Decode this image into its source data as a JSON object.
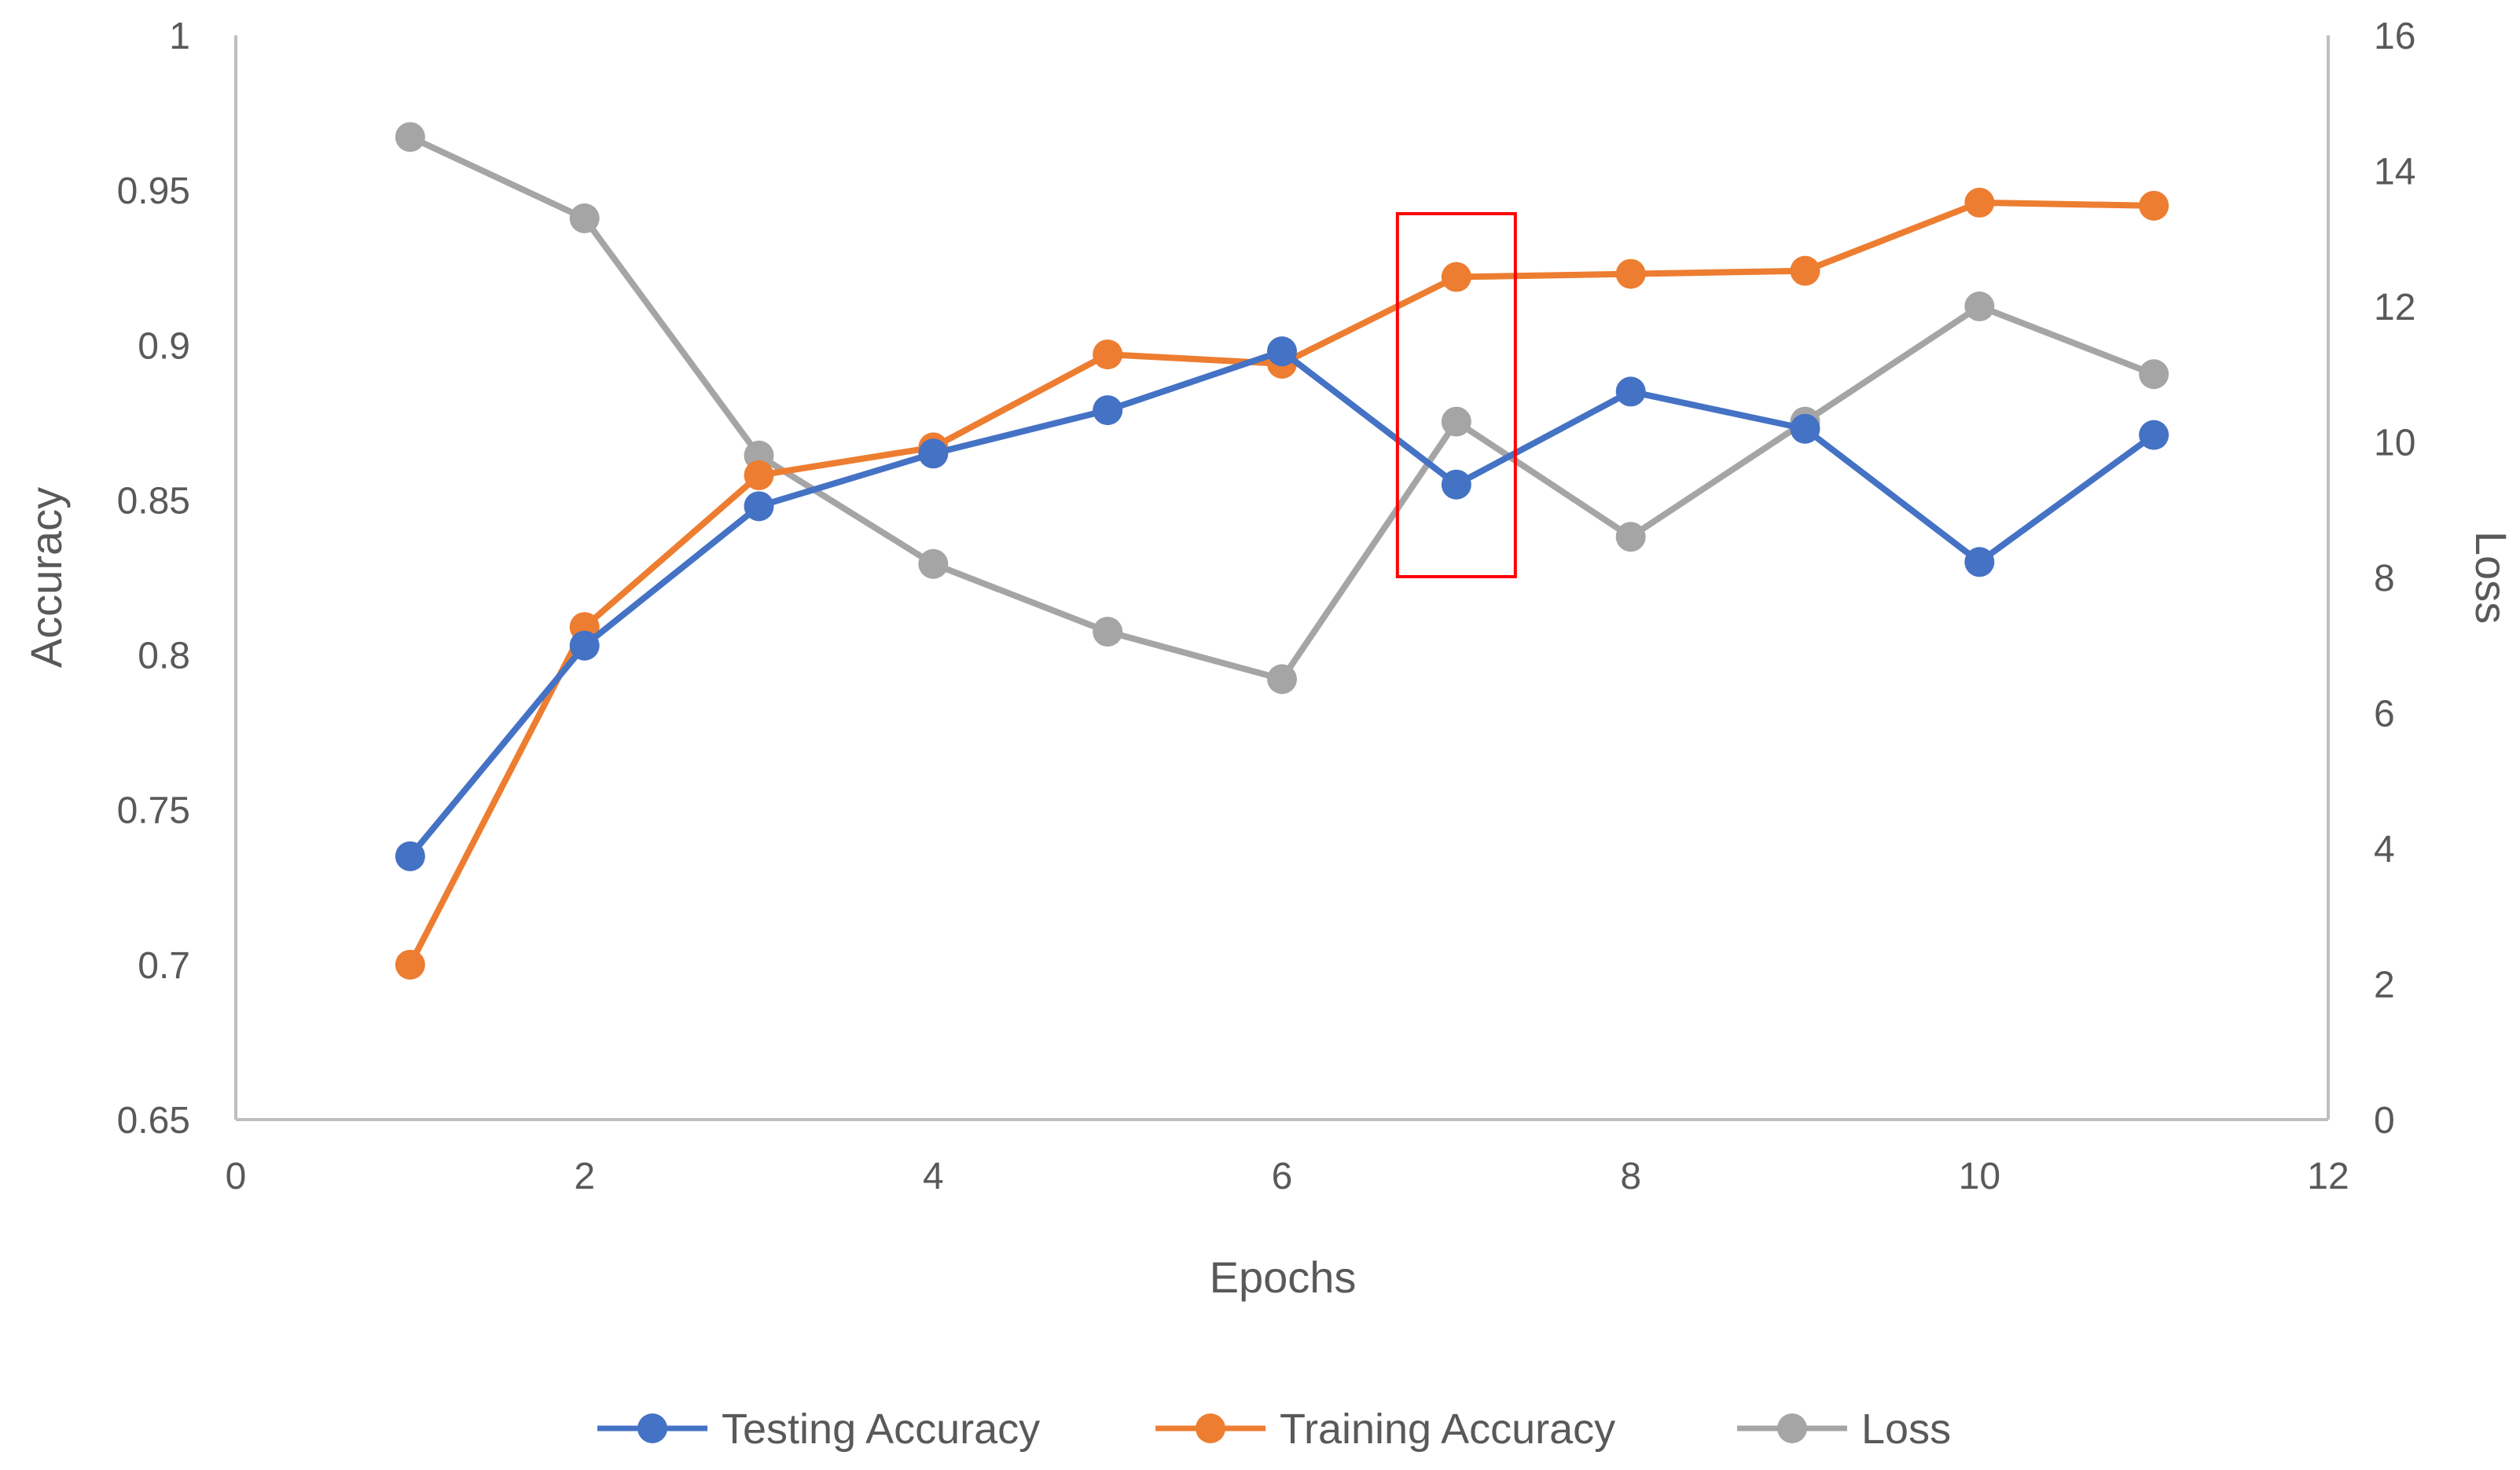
{
  "chart_data": {
    "type": "line",
    "title": "",
    "xlabel": "Epochs",
    "ylabel": "Accuracy",
    "y2label": "Loss",
    "xlim": [
      0,
      12
    ],
    "ylim": [
      0.65,
      1
    ],
    "y2lim": [
      0,
      16
    ],
    "x_ticks": [
      "0",
      "2",
      "4",
      "6",
      "8",
      "10",
      "12"
    ],
    "y_ticks": [
      "0.65",
      "0.7",
      "0.75",
      "0.8",
      "0.85",
      "0.9",
      "0.95",
      "1"
    ],
    "y2_ticks": [
      "0",
      "2",
      "4",
      "6",
      "8",
      "10",
      "12",
      "14",
      "16"
    ],
    "x": [
      1,
      2,
      3,
      4,
      5,
      6,
      7,
      8,
      9,
      10,
      11
    ],
    "grid": false,
    "legend_position": "bottom",
    "series": [
      {
        "name": "Testing Accuracy",
        "axis": "left",
        "color": "#4472c4",
        "values": [
          0.735,
          0.803,
          0.848,
          0.865,
          0.879,
          0.898,
          0.855,
          0.885,
          0.873,
          0.83,
          0.871
        ]
      },
      {
        "name": "Training Accuracy",
        "axis": "left",
        "color": "#ed7d31",
        "values": [
          0.7,
          0.809,
          0.858,
          0.867,
          0.897,
          0.894,
          0.922,
          0.923,
          0.924,
          0.946,
          0.945
        ]
      },
      {
        "name": "Loss",
        "axis": "right",
        "color": "#a5a5a5",
        "values": [
          14.5,
          13.3,
          9.8,
          8.2,
          7.2,
          6.5,
          10.3,
          8.6,
          10.3,
          12.0,
          11.0
        ]
      }
    ],
    "annotation": {
      "type": "highlight-box",
      "x": 7,
      "color": "#ff0000"
    }
  }
}
